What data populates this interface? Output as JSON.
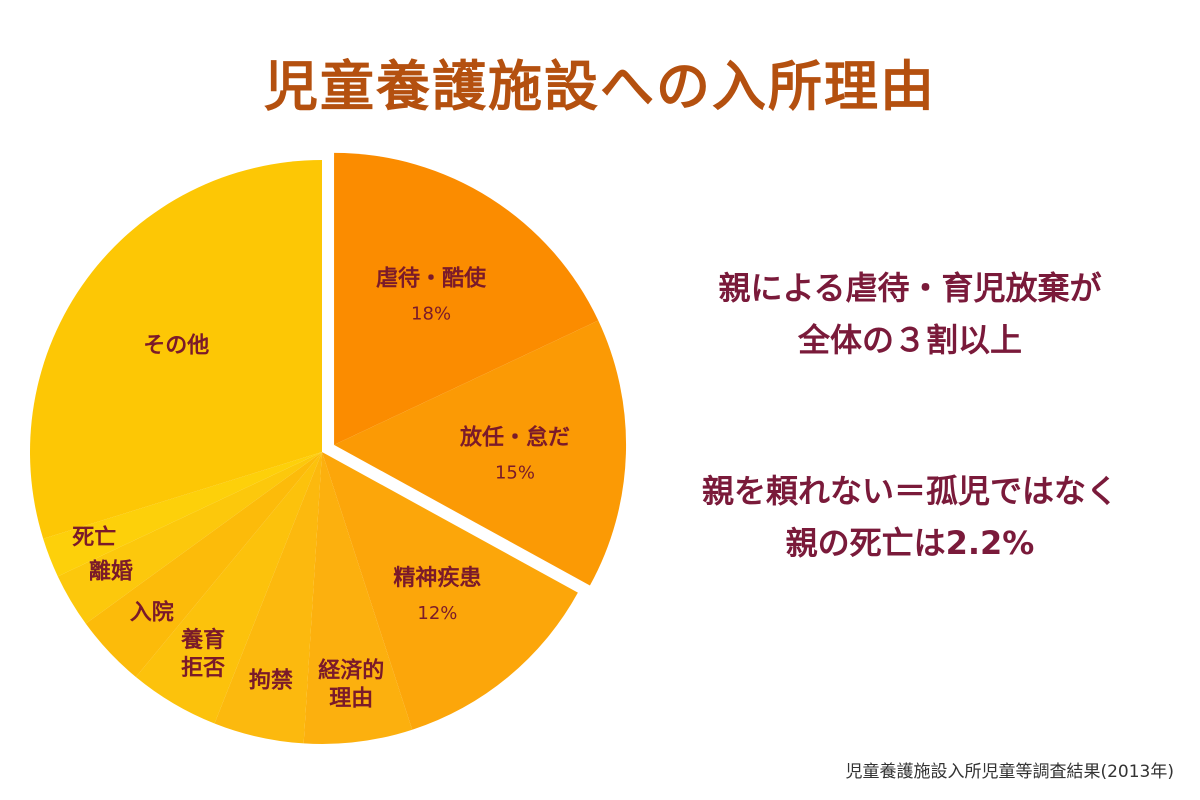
{
  "chart_data": {
    "type": "pie",
    "title": "児童養護施設への入所理由",
    "slices": [
      {
        "lines": [
          "虐待・酷使"
        ],
        "pct_label": "18%",
        "value": 18,
        "color": "#fb8c00",
        "exploded": true
      },
      {
        "lines": [
          "放任・怠だ"
        ],
        "pct_label": "15%",
        "value": 15,
        "color": "#fb9a05",
        "exploded": true
      },
      {
        "lines": [
          "精神疾患"
        ],
        "pct_label": "12%",
        "value": 12,
        "color": "#fca60a",
        "exploded": false
      },
      {
        "lines": [
          "経済的",
          "理由"
        ],
        "pct_label": "",
        "value": 6,
        "color": "#fcb00e",
        "exploded": false
      },
      {
        "lines": [
          "拘禁"
        ],
        "pct_label": "",
        "value": 5,
        "color": "#fcb90e",
        "exploded": false
      },
      {
        "lines": [
          "養育",
          "拒否"
        ],
        "pct_label": "",
        "value": 5,
        "color": "#fcc20c",
        "exploded": false
      },
      {
        "lines": [
          "入院"
        ],
        "pct_label": "",
        "value": 4,
        "color": "#fcbb0a",
        "exploded": false
      },
      {
        "lines": [
          "離婚"
        ],
        "pct_label": "",
        "value": 3,
        "color": "#fcc80c",
        "exploded": false
      },
      {
        "lines": [
          "死亡"
        ],
        "pct_label": "",
        "value": 2.2,
        "color": "#fdd00a",
        "exploded": false
      },
      {
        "lines": [
          "その他"
        ],
        "pct_label": "",
        "value": 29.8,
        "color": "#fdc705",
        "exploded": false
      }
    ],
    "legend": "none"
  },
  "notes": {
    "note1": [
      "親による虐待・育児放棄が",
      "全体の３割以上"
    ],
    "note2": [
      "親を頼れない＝孤児ではなく",
      "親の死亡は2.2%"
    ]
  },
  "source": "児童養護施設入所児童等調査結果(2013年)"
}
